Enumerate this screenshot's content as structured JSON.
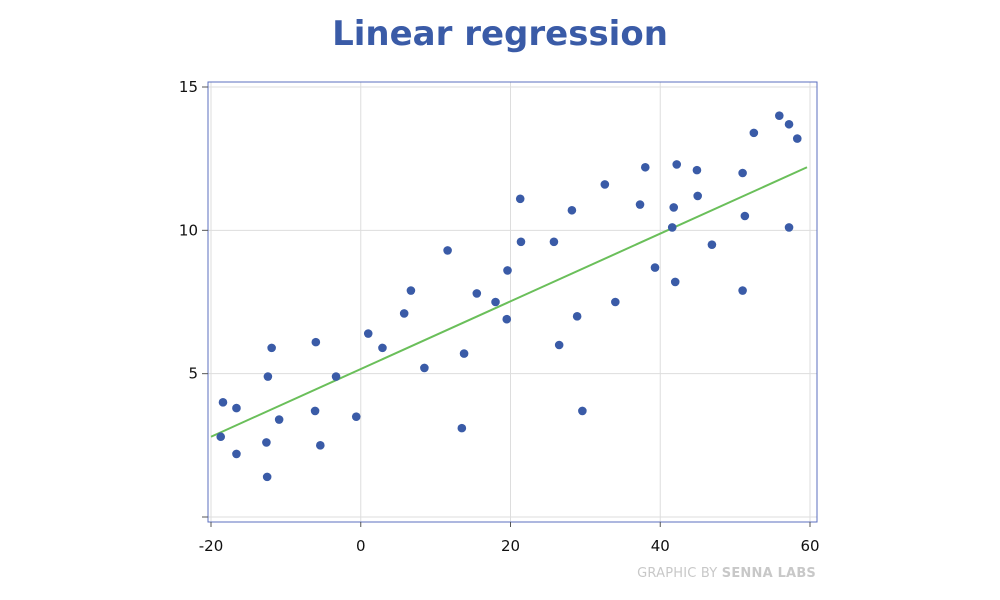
{
  "chart_data": {
    "type": "scatter",
    "title": "Linear regression",
    "xlabel": "",
    "ylabel": "",
    "xlim": [
      -20,
      60
    ],
    "ylim": [
      0,
      15
    ],
    "x_ticks": [
      -20,
      0,
      20,
      40,
      60
    ],
    "y_ticks": [
      5,
      10,
      15
    ],
    "grid": true,
    "colors": {
      "points": "#3a5ba7",
      "fit_line": "#6abf5a",
      "title": "#3a5ba7",
      "frame": "#5b6fbf"
    },
    "series": [
      {
        "values": [
          {
            "x": -18.7,
            "y": 2.8
          },
          {
            "x": -18.4,
            "y": 4.0
          },
          {
            "x": -16.6,
            "y": 3.8
          },
          {
            "x": -16.6,
            "y": 2.2
          },
          {
            "x": -12.6,
            "y": 2.6
          },
          {
            "x": -12.5,
            "y": 1.4
          },
          {
            "x": -12.4,
            "y": 4.9
          },
          {
            "x": -11.9,
            "y": 5.9
          },
          {
            "x": -10.9,
            "y": 3.4
          },
          {
            "x": -6.1,
            "y": 3.7
          },
          {
            "x": -6.0,
            "y": 6.1
          },
          {
            "x": -5.4,
            "y": 2.5
          },
          {
            "x": -3.3,
            "y": 4.9
          },
          {
            "x": -0.6,
            "y": 3.5
          },
          {
            "x": 1.0,
            "y": 6.4
          },
          {
            "x": 2.9,
            "y": 5.9
          },
          {
            "x": 5.8,
            "y": 7.1
          },
          {
            "x": 6.7,
            "y": 7.9
          },
          {
            "x": 8.5,
            "y": 5.2
          },
          {
            "x": 11.6,
            "y": 9.3
          },
          {
            "x": 13.5,
            "y": 3.1
          },
          {
            "x": 13.8,
            "y": 5.7
          },
          {
            "x": 15.5,
            "y": 7.8
          },
          {
            "x": 18.0,
            "y": 7.5
          },
          {
            "x": 19.5,
            "y": 6.9
          },
          {
            "x": 19.6,
            "y": 8.6
          },
          {
            "x": 21.3,
            "y": 11.1
          },
          {
            "x": 21.4,
            "y": 9.6
          },
          {
            "x": 25.8,
            "y": 9.6
          },
          {
            "x": 26.5,
            "y": 6.0
          },
          {
            "x": 28.2,
            "y": 10.7
          },
          {
            "x": 28.9,
            "y": 7.0
          },
          {
            "x": 29.6,
            "y": 3.7
          },
          {
            "x": 32.6,
            "y": 11.6
          },
          {
            "x": 34.0,
            "y": 7.5
          },
          {
            "x": 37.3,
            "y": 10.9
          },
          {
            "x": 38.0,
            "y": 12.2
          },
          {
            "x": 39.3,
            "y": 8.7
          },
          {
            "x": 41.6,
            "y": 10.1
          },
          {
            "x": 41.8,
            "y": 10.8
          },
          {
            "x": 42.0,
            "y": 8.2
          },
          {
            "x": 42.2,
            "y": 12.3
          },
          {
            "x": 44.9,
            "y": 12.1
          },
          {
            "x": 45.0,
            "y": 11.2
          },
          {
            "x": 46.9,
            "y": 9.5
          },
          {
            "x": 51.0,
            "y": 12.0
          },
          {
            "x": 51.0,
            "y": 7.9
          },
          {
            "x": 51.3,
            "y": 10.5
          },
          {
            "x": 52.5,
            "y": 13.4
          },
          {
            "x": 55.9,
            "y": 14.0
          },
          {
            "x": 57.2,
            "y": 13.7
          },
          {
            "x": 57.2,
            "y": 10.1
          },
          {
            "x": 58.3,
            "y": 13.2
          }
        ]
      }
    ],
    "fit_line": {
      "x": [
        -20,
        59.6
      ],
      "y": [
        2.8,
        12.2
      ]
    }
  },
  "credit": {
    "prefix": "GRAPHIC BY",
    "brand": "SENNA LABS"
  }
}
